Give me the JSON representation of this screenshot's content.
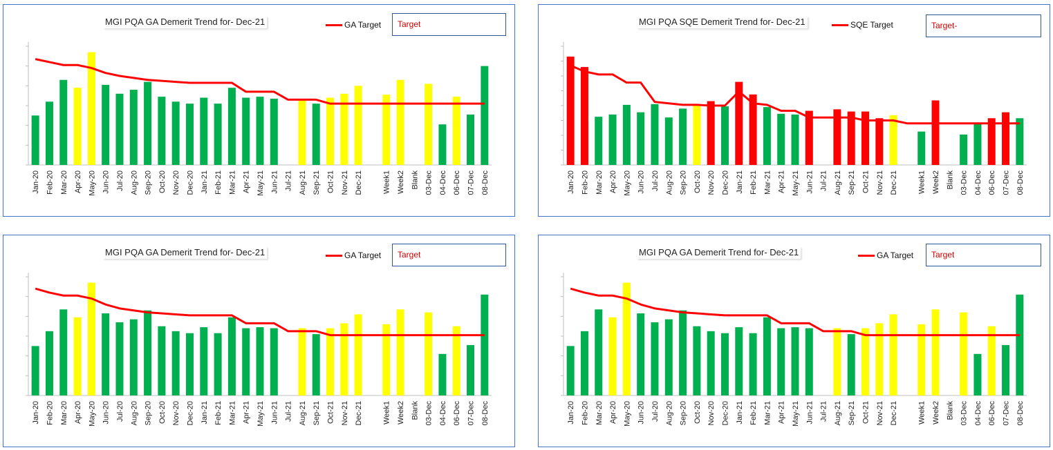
{
  "colors": {
    "green": "#00b050",
    "yellow": "#ffff00",
    "red": "#ff0000",
    "target_line": "#ff0000",
    "border": "#4472c4"
  },
  "categories": [
    "Jan-20",
    "Feb-20",
    "Mar-20",
    "Apr-20",
    "May-20",
    "Jun-20",
    "Jul-20",
    "Aug-20",
    "Sep-20",
    "Oct-20",
    "Nov-20",
    "Dec-20",
    "Jan-21",
    "Feb-21",
    "Mar-21",
    "Apr-21",
    "May-21",
    "Jun-21",
    "Jul-21",
    "Aug-21",
    "Sep-21",
    "Oct-21",
    "Nov-21",
    "Dec-21",
    "",
    "Week1",
    "Week2",
    "Blank",
    "03-Dec",
    "04-Dec",
    "06-Dec",
    "07-Dec",
    "08-Dec"
  ],
  "chart_data": [
    {
      "type": "bar",
      "title": "MGI PQA GA Demerit Trend for- Dec-21",
      "legend_label": "GA Target",
      "target_box_text": "Target",
      "ylim": [
        0,
        6
      ],
      "values": [
        2.5,
        3.2,
        4.3,
        3.9,
        5.7,
        4.05,
        3.6,
        3.8,
        4.2,
        3.45,
        3.2,
        3.1,
        3.4,
        3.1,
        3.9,
        3.4,
        3.45,
        3.35,
        null,
        3.35,
        3.1,
        3.4,
        3.6,
        4.0,
        null,
        3.55,
        4.3,
        null,
        4.1,
        2.05,
        3.45,
        2.55,
        5.0
      ],
      "bar_colors": [
        "green",
        "green",
        "green",
        "yellow",
        "yellow",
        "green",
        "green",
        "green",
        "green",
        "green",
        "green",
        "green",
        "green",
        "green",
        "green",
        "green",
        "green",
        "green",
        "",
        "yellow",
        "green",
        "yellow",
        "yellow",
        "yellow",
        "",
        "yellow",
        "yellow",
        "",
        "yellow",
        "green",
        "yellow",
        "green",
        "green"
      ],
      "target": [
        5.35,
        5.2,
        5.05,
        5.05,
        4.9,
        4.65,
        4.5,
        4.4,
        4.3,
        4.25,
        4.2,
        4.15,
        4.15,
        4.15,
        4.15,
        3.7,
        3.7,
        3.7,
        3.3,
        3.3,
        3.3,
        3.1,
        3.1,
        3.1,
        3.1,
        3.1,
        3.1,
        3.1,
        3.1,
        3.1,
        3.1,
        3.1,
        3.1
      ]
    },
    {
      "type": "bar",
      "title": "MGI PQA SQE Demerit Trend for- Dec-21",
      "legend_label": "SQE Target",
      "target_box_text": "Target-",
      "ylim": [
        0,
        8
      ],
      "values": [
        7.3,
        6.6,
        3.25,
        3.4,
        4.05,
        3.55,
        4.1,
        3.2,
        3.8,
        4.0,
        4.3,
        3.95,
        5.6,
        4.75,
        3.9,
        3.45,
        3.4,
        3.65,
        null,
        3.75,
        3.6,
        3.6,
        3.15,
        3.35,
        null,
        2.25,
        4.35,
        null,
        2.05,
        2.75,
        3.15,
        3.55,
        3.15
      ],
      "bar_colors": [
        "red",
        "red",
        "green",
        "green",
        "green",
        "green",
        "green",
        "green",
        "green",
        "yellow",
        "red",
        "green",
        "red",
        "red",
        "green",
        "green",
        "green",
        "red",
        "",
        "red",
        "red",
        "red",
        "red",
        "yellow",
        "",
        "green",
        "red",
        "",
        "green",
        "green",
        "red",
        "red",
        "green"
      ],
      "target": [
        6.7,
        6.3,
        6.1,
        6.1,
        5.55,
        5.55,
        4.25,
        4.15,
        4.05,
        4.05,
        4.0,
        4.0,
        4.95,
        4.15,
        4.05,
        3.65,
        3.65,
        3.2,
        3.2,
        3.2,
        3.2,
        3.0,
        3.0,
        3.0,
        2.8,
        2.8,
        2.8,
        2.8,
        2.8,
        2.8,
        2.8,
        2.8,
        2.8
      ]
    },
    {
      "type": "bar",
      "title": "MGI PQA GA Demerit Trend for- Dec-21",
      "legend_label": "GA Target",
      "target_box_text": "Target",
      "ylim": [
        0,
        6
      ],
      "values": [
        2.5,
        3.25,
        4.35,
        3.95,
        5.7,
        4.15,
        3.7,
        3.85,
        4.3,
        3.5,
        3.25,
        3.15,
        3.45,
        3.15,
        3.95,
        3.4,
        3.45,
        3.4,
        null,
        3.4,
        3.1,
        3.4,
        3.65,
        4.1,
        null,
        3.6,
        4.35,
        null,
        4.2,
        2.1,
        3.5,
        2.55,
        5.1
      ],
      "bar_colors": [
        "green",
        "green",
        "green",
        "yellow",
        "yellow",
        "green",
        "green",
        "green",
        "green",
        "green",
        "green",
        "green",
        "green",
        "green",
        "green",
        "green",
        "green",
        "green",
        "",
        "yellow",
        "green",
        "yellow",
        "yellow",
        "yellow",
        "",
        "yellow",
        "yellow",
        "",
        "yellow",
        "green",
        "yellow",
        "green",
        "green"
      ],
      "target": [
        5.4,
        5.2,
        5.05,
        5.05,
        4.9,
        4.6,
        4.4,
        4.3,
        4.2,
        4.15,
        4.1,
        4.05,
        4.05,
        4.05,
        4.05,
        3.65,
        3.65,
        3.65,
        3.25,
        3.25,
        3.25,
        3.05,
        3.05,
        3.05,
        3.05,
        3.05,
        3.05,
        3.05,
        3.05,
        3.05,
        3.05,
        3.05,
        3.05
      ]
    },
    {
      "type": "bar",
      "title": "MGI PQA GA Demerit Trend for- Dec-21",
      "legend_label": "GA Target",
      "target_box_text": "Target",
      "ylim": [
        0,
        6
      ],
      "values": [
        2.5,
        3.25,
        4.35,
        3.95,
        5.7,
        4.15,
        3.7,
        3.85,
        4.3,
        3.5,
        3.25,
        3.15,
        3.45,
        3.15,
        3.95,
        3.4,
        3.45,
        3.4,
        null,
        3.4,
        3.1,
        3.4,
        3.65,
        4.1,
        null,
        3.6,
        4.35,
        null,
        4.2,
        2.1,
        3.5,
        2.55,
        5.1
      ],
      "bar_colors": [
        "green",
        "green",
        "green",
        "yellow",
        "yellow",
        "green",
        "green",
        "green",
        "green",
        "green",
        "green",
        "green",
        "green",
        "green",
        "green",
        "green",
        "green",
        "green",
        "",
        "yellow",
        "green",
        "yellow",
        "yellow",
        "yellow",
        "",
        "yellow",
        "yellow",
        "",
        "yellow",
        "green",
        "yellow",
        "green",
        "green"
      ],
      "target": [
        5.4,
        5.2,
        5.05,
        5.05,
        4.9,
        4.6,
        4.4,
        4.3,
        4.2,
        4.15,
        4.1,
        4.05,
        4.05,
        4.05,
        4.05,
        3.65,
        3.65,
        3.65,
        3.25,
        3.25,
        3.25,
        3.05,
        3.05,
        3.05,
        3.05,
        3.05,
        3.05,
        3.05,
        3.05,
        3.05,
        3.05,
        3.05,
        3.05
      ]
    }
  ]
}
